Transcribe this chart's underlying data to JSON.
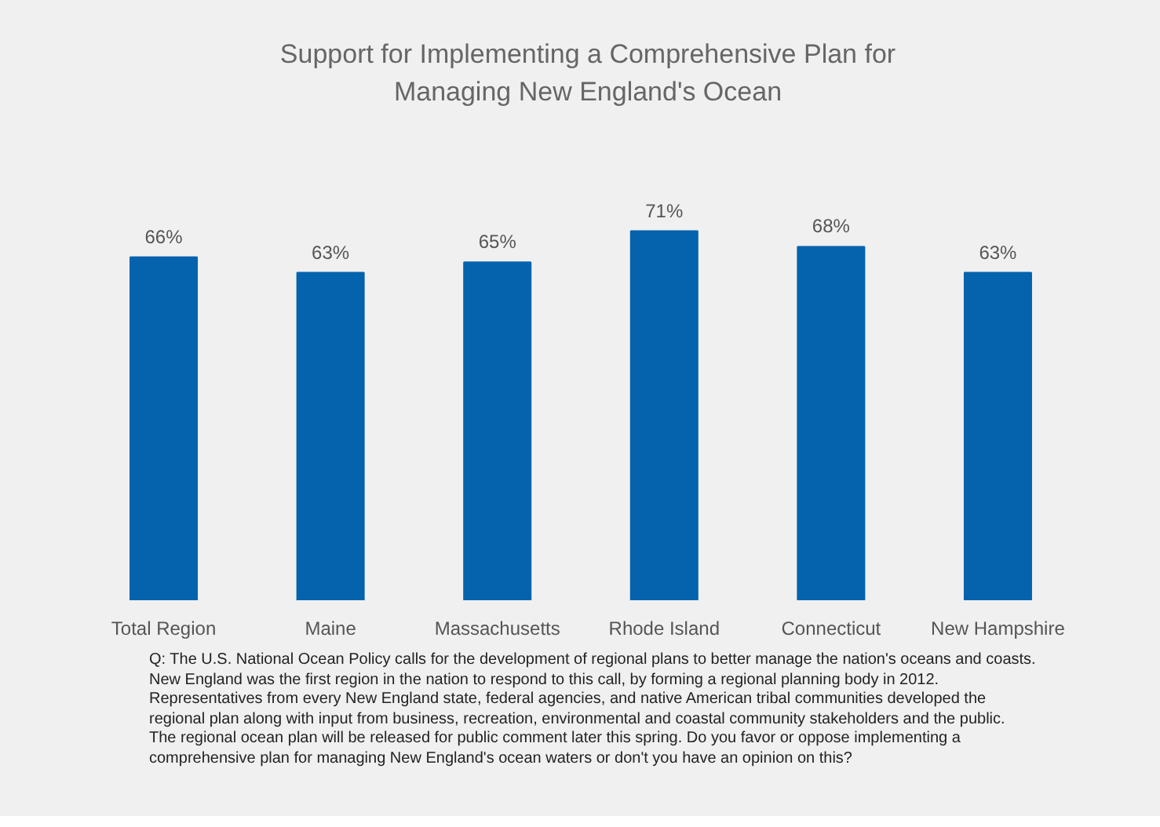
{
  "chart_data": {
    "type": "bar",
    "title": "Support for Implementing a Comprehensive Plan for\nManaging New England's Ocean",
    "categories": [
      "Total Region",
      "Maine",
      "Massachusetts",
      "Rhode Island",
      "Connecticut",
      "New Hampshire"
    ],
    "values": [
      66,
      63,
      65,
      71,
      68,
      63
    ],
    "value_labels": [
      "66%",
      "63%",
      "65%",
      "71%",
      "68%",
      "63%"
    ],
    "color": "#0563ae",
    "grid": false,
    "tick_labels": "x",
    "annotations": [
      "Q: The U.S. National Ocean Policy calls for the development of regional plans to better manage the nation's oceans and coasts.\nNew England was the first region in the nation to respond to this call, by forming a regional planning body in 2012.\nRepresentatives from every New England state, federal agencies, and native American tribal communities developed the\nregional plan along with input from business, recreation, environmental and coastal community stakeholders and the public.\nThe regional ocean plan will be released for public comment later this spring. Do you favor or oppose implementing a\ncomprehensive plan for managing New England's ocean waters or don't you have an opinion on this?"
    ]
  }
}
